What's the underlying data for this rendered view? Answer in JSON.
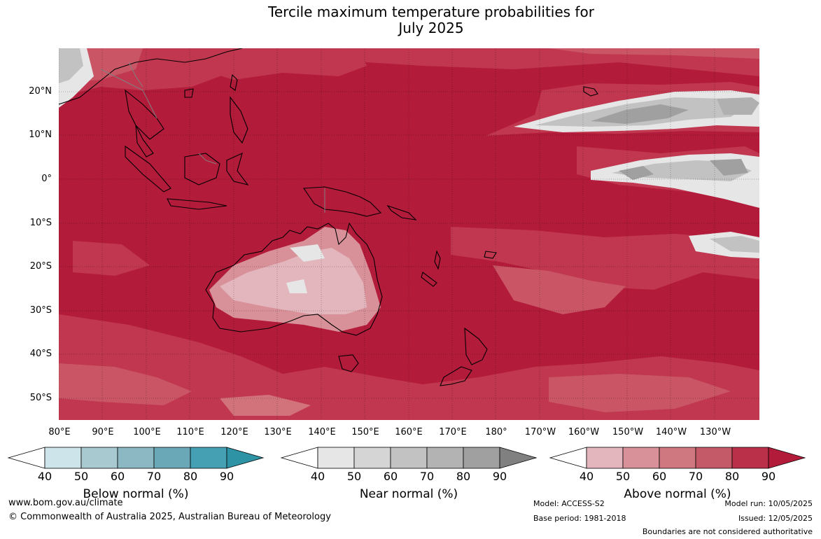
{
  "title": {
    "line1": "Tercile maximum temperature probabilities for",
    "line2": "July 2025"
  },
  "map": {
    "lat_labels": [
      "20°N",
      "10°N",
      "0°",
      "10°S",
      "20°S",
      "30°S",
      "40°S",
      "50°S"
    ],
    "lon_labels": [
      "80°E",
      "90°E",
      "100°E",
      "110°E",
      "120°E",
      "130°E",
      "140°E",
      "150°E",
      "160°E",
      "170°E",
      "180°",
      "170°W",
      "160°W",
      "150°W",
      "140°W",
      "130°W"
    ],
    "colors": {
      "above_90": "#b31b3a",
      "above_80": "#c0374f",
      "above_70": "#c95565",
      "above_60": "#d2737c",
      "above_50": "#d99199",
      "above_40": "#e2b6bc",
      "near_40": "#e6e6e6",
      "near_50": "#d5d5d5",
      "near_60": "#c2c2c2",
      "near_70": "#b0b0b0",
      "near_80": "#a0a0a0",
      "coast": "#000000",
      "border": "#808080"
    }
  },
  "legends": {
    "ticks": [
      "40",
      "50",
      "60",
      "70",
      "80",
      "90"
    ],
    "below": {
      "title": "Below normal (%)",
      "colors": [
        "#cde4ea",
        "#a8c9cf",
        "#8cb8c4",
        "#6aa8b8",
        "#45a0b3",
        "#2e93a5"
      ]
    },
    "near": {
      "title": "Near normal (%)",
      "colors": [
        "#e6e6e6",
        "#d5d5d5",
        "#c2c2c2",
        "#b3b3b3",
        "#a0a0a0",
        "#808080"
      ]
    },
    "above": {
      "title": "Above normal (%)",
      "colors": [
        "#e2b6bc",
        "#d99199",
        "#cf7880",
        "#c45a67",
        "#b93048",
        "#b31b3a"
      ]
    }
  },
  "footer": {
    "website": "www.bom.gov.au/climate",
    "copyright": "© Commonwealth of Australia 2025, Australian Bureau of Meteorology",
    "model": "Model: ACCESS-S2",
    "base_period": "Base period: 1981-2018",
    "model_run": "Model run: 10/05/2025",
    "issued": "Issued: 12/05/2025",
    "disclaimer": "Boundaries are not considered authoritative"
  }
}
